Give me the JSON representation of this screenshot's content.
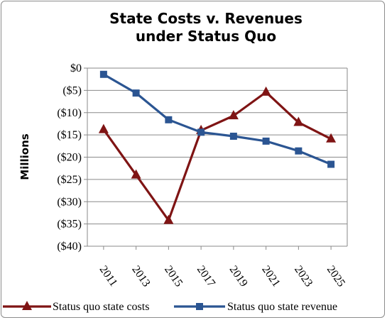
{
  "chart_data": {
    "type": "line",
    "title": "State Costs v. Revenues under Status Quo",
    "title_lines": [
      "State Costs v. Revenues",
      "under Status Quo"
    ],
    "ylabel": "Millions",
    "xlabel": "",
    "x": [
      "2011",
      "2013",
      "2015",
      "2017",
      "2019",
      "2021",
      "2023",
      "2025"
    ],
    "y_ticks": [
      0,
      -5,
      -10,
      -15,
      -20,
      -25,
      -30,
      -35,
      -40
    ],
    "y_tick_labels": [
      "$0",
      "($5)",
      "($10)",
      "($15)",
      "($20)",
      "($25)",
      "($30)",
      "($35)",
      "($40)"
    ],
    "ylim": [
      -40,
      0
    ],
    "grid": "horizontal",
    "legend_position": "bottom",
    "series": [
      {
        "name": "Status quo state costs",
        "color": "#7f1414",
        "marker": "triangle",
        "values": [
          -13.8,
          -24.0,
          -34.2,
          -14.0,
          -10.7,
          -5.4,
          -12.2,
          -15.9
        ]
      },
      {
        "name": "Status quo state revenue",
        "color": "#2b5592",
        "marker": "square",
        "values": [
          -1.4,
          -5.6,
          -11.6,
          -14.4,
          -15.3,
          -16.4,
          -18.6,
          -21.6
        ]
      }
    ]
  }
}
